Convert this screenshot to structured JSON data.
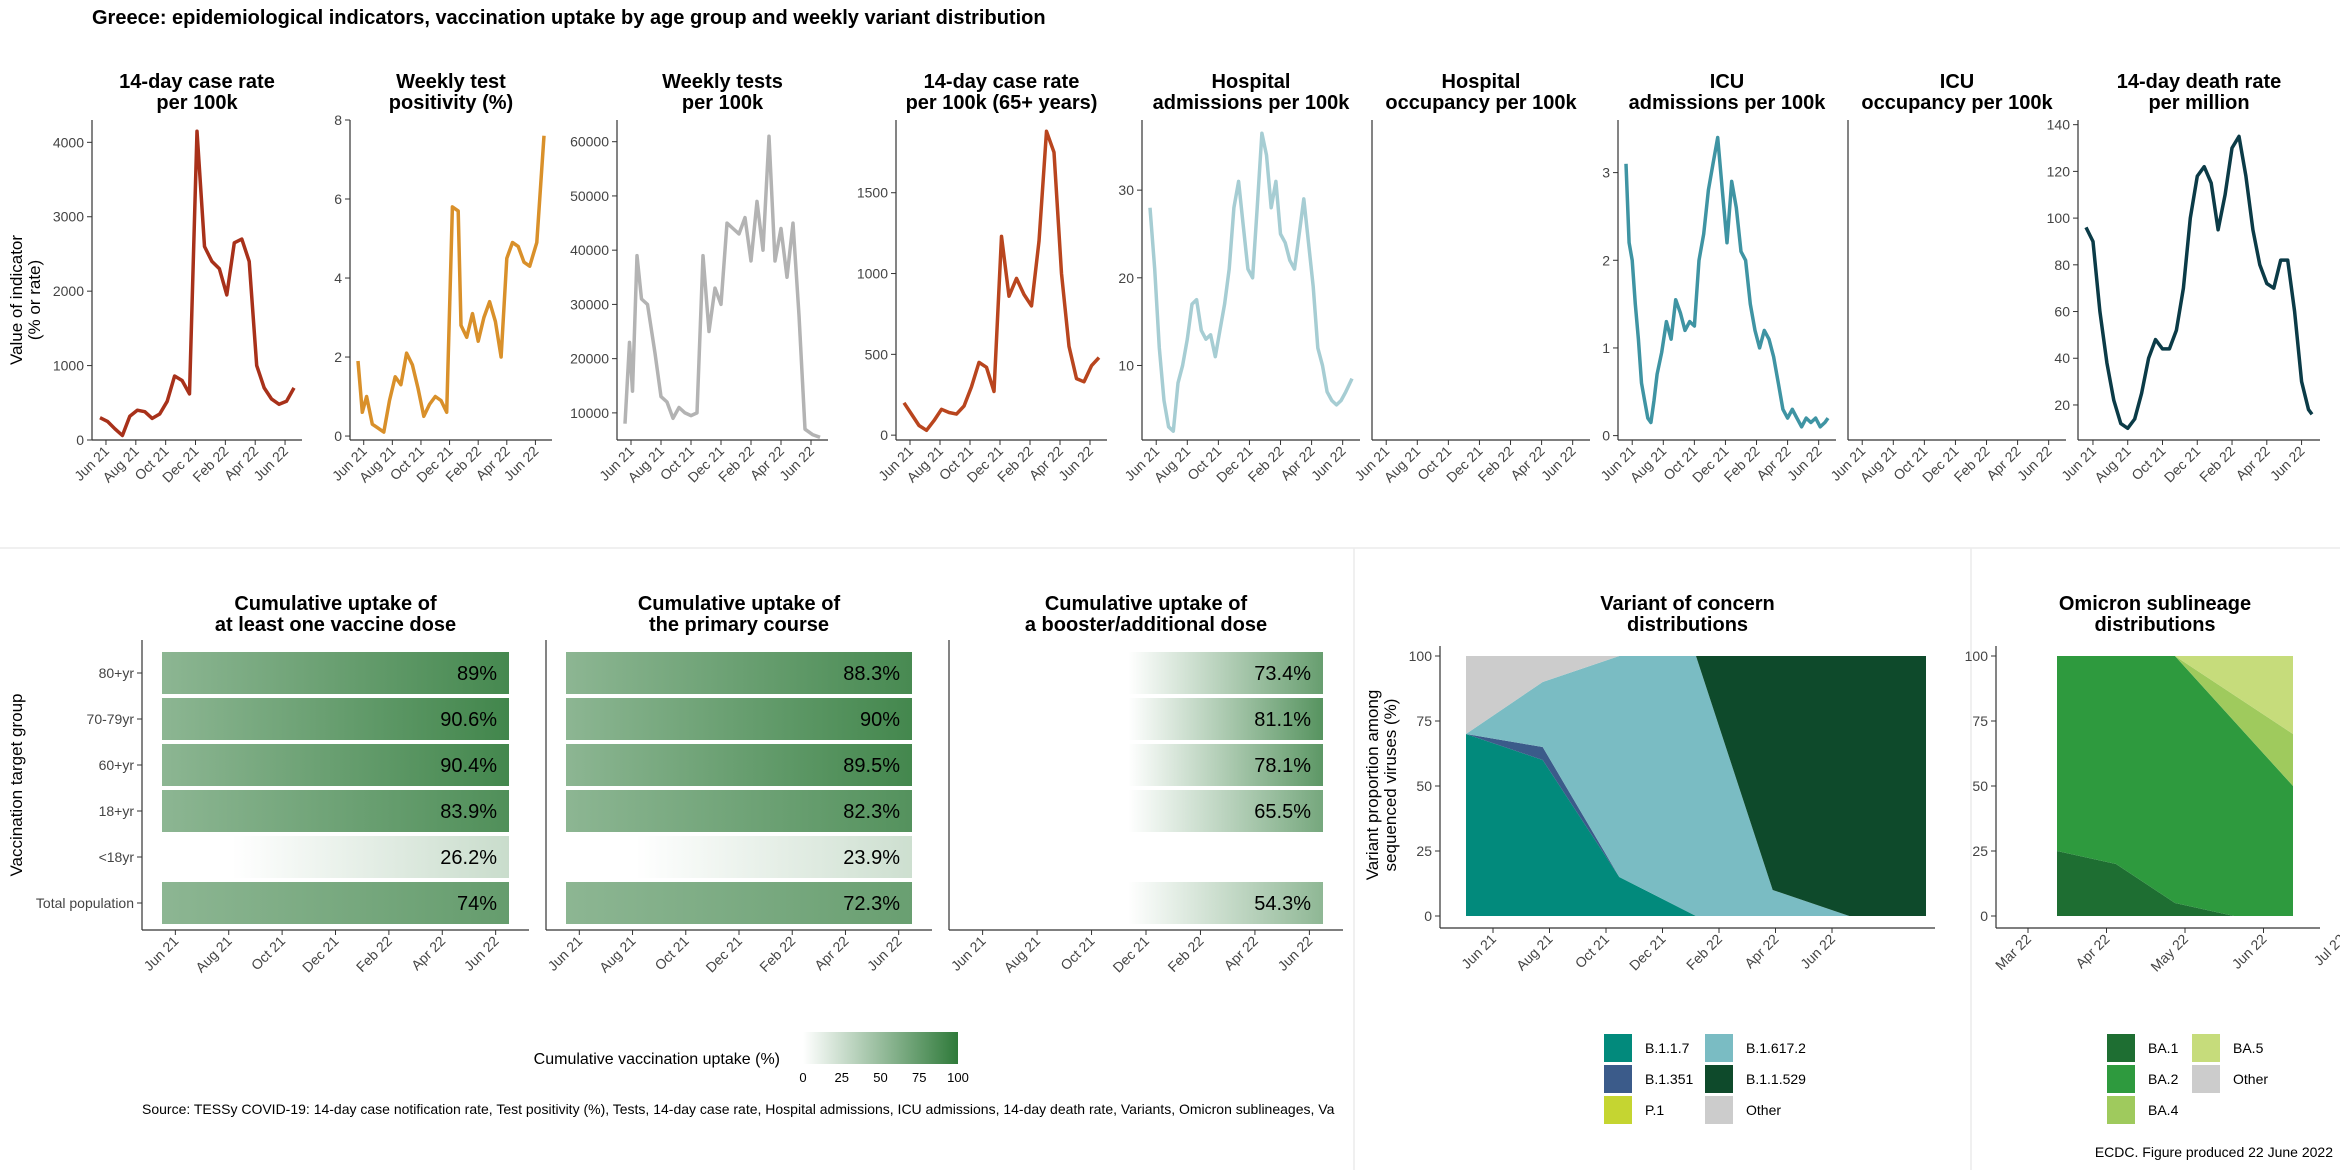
{
  "page_title": "Greece: epidemiological indicators, vaccination uptake by age group and weekly variant distribution",
  "y_axis_title_top": [
    "Value of indicator",
    "(% or rate)"
  ],
  "date_ticks": [
    "Jun 21",
    "Aug 21",
    "Oct 21",
    "Dec 21",
    "Feb 22",
    "Apr 22",
    "Jun 22"
  ],
  "colors": {
    "case_rate": "#a8311a",
    "positivity": "#d9902a",
    "tests": "#b3b3b3",
    "case_rate_65": "#b9451e",
    "hosp_adm": "#a6cdd3",
    "icu_adm": "#3f94a3",
    "death": "#0b3b47",
    "vacc_high": "#2f7a3a",
    "vacc_low": "#ffffff",
    "grid": "#ebebeb"
  },
  "chart_data": [
    {
      "type": "line",
      "key": "case_rate",
      "title": [
        "14-day case rate",
        "per 100k"
      ],
      "ylim": [
        0,
        4300
      ],
      "yticks": [
        0,
        1000,
        2000,
        3000,
        4000
      ],
      "x": [
        0,
        0.5,
        1,
        1.5,
        2,
        2.5,
        3,
        3.5,
        4,
        4.5,
        5,
        5.5,
        6,
        6.5,
        7,
        7.5,
        8,
        8.5,
        9,
        9.5,
        10,
        10.5,
        11,
        11.5,
        12,
        12.5,
        13
      ],
      "y": [
        300,
        250,
        150,
        60,
        320,
        400,
        380,
        290,
        350,
        520,
        860,
        800,
        620,
        4150,
        2600,
        2400,
        2300,
        1950,
        2650,
        2700,
        2400,
        1000,
        700,
        550,
        480,
        520,
        700
      ]
    },
    {
      "type": "line",
      "key": "positivity",
      "title": [
        "Weekly test",
        "positivity (%)"
      ],
      "ylim": [
        -0.1,
        8
      ],
      "yticks": [
        0,
        2,
        4,
        6,
        8
      ],
      "x": [
        0,
        0.3,
        0.6,
        1,
        1.4,
        1.8,
        2.2,
        2.6,
        3,
        3.4,
        3.8,
        4.2,
        4.6,
        5,
        5.4,
        5.8,
        6.2,
        6.6,
        7,
        7.2,
        7.6,
        8,
        8.4,
        8.8,
        9.2,
        9.6,
        10,
        10.4,
        10.8,
        11.2,
        11.6,
        12,
        12.5,
        13
      ],
      "y": [
        1.9,
        0.6,
        1.0,
        0.3,
        0.2,
        0.1,
        0.9,
        1.5,
        1.3,
        2.1,
        1.8,
        1.2,
        0.5,
        0.8,
        1.0,
        0.9,
        0.6,
        5.8,
        5.7,
        2.8,
        2.5,
        3.1,
        2.4,
        3.0,
        3.4,
        2.9,
        2.0,
        4.5,
        4.9,
        4.8,
        4.4,
        4.3,
        4.9,
        7.6
      ]
    },
    {
      "type": "line",
      "key": "tests",
      "title": [
        "Weekly tests",
        "per 100k"
      ],
      "ylim": [
        5000,
        64000
      ],
      "yticks": [
        10000,
        20000,
        30000,
        40000,
        50000,
        60000
      ],
      "x": [
        0,
        0.3,
        0.5,
        0.8,
        1.1,
        1.5,
        2,
        2.4,
        2.8,
        3.2,
        3.6,
        4,
        4.4,
        4.8,
        5.2,
        5.6,
        6,
        6.4,
        6.8,
        7.2,
        7.6,
        8,
        8.4,
        8.8,
        9.2,
        9.6,
        10,
        10.4,
        10.8,
        11.2,
        11.6,
        12,
        12.5,
        13
      ],
      "y": [
        8000,
        23000,
        14000,
        39000,
        31000,
        30000,
        21000,
        13000,
        12000,
        9000,
        11000,
        10000,
        9500,
        10000,
        39000,
        25000,
        33000,
        30000,
        45000,
        44000,
        43000,
        46000,
        38000,
        49000,
        40000,
        61000,
        38000,
        44000,
        35000,
        45000,
        28000,
        7000,
        6000,
        5500
      ]
    },
    {
      "type": "line",
      "key": "case_rate_65",
      "title": [
        "14-day case rate",
        "per 100k (65+ years)"
      ],
      "ylim": [
        -30,
        1950
      ],
      "yticks": [
        0,
        500,
        1000,
        1500
      ],
      "x": [
        0,
        0.5,
        1,
        1.5,
        2,
        2.5,
        3,
        3.5,
        4,
        4.5,
        5,
        5.5,
        6,
        6.5,
        7,
        7.5,
        8,
        8.5,
        9,
        9.5,
        10,
        10.5,
        11,
        11.5,
        12,
        12.5,
        13
      ],
      "y": [
        200,
        130,
        60,
        30,
        90,
        160,
        140,
        130,
        180,
        300,
        450,
        420,
        270,
        1230,
        860,
        970,
        870,
        800,
        1200,
        1880,
        1750,
        1000,
        550,
        350,
        330,
        430,
        480
      ]
    },
    {
      "type": "line",
      "key": "hosp_adm",
      "title": [
        "Hospital",
        "admissions per 100k"
      ],
      "ylim": [
        1.5,
        38
      ],
      "yticks": [
        10,
        20,
        30
      ],
      "x": [
        0,
        0.3,
        0.6,
        0.9,
        1.2,
        1.5,
        1.8,
        2.1,
        2.4,
        2.7,
        3,
        3.3,
        3.6,
        3.9,
        4.2,
        4.5,
        4.8,
        5.1,
        5.4,
        5.7,
        6,
        6.3,
        6.6,
        6.9,
        7.2,
        7.5,
        7.8,
        8.1,
        8.4,
        8.7,
        9,
        9.3,
        9.6,
        9.9,
        10.2,
        10.5,
        10.8,
        11.1,
        11.4,
        11.7,
        12,
        12.3,
        12.6,
        13
      ],
      "y": [
        28,
        21,
        12,
        6,
        3,
        2.5,
        8,
        10,
        13,
        17,
        17.5,
        14,
        13,
        13.5,
        11,
        14,
        17,
        21,
        28,
        31,
        26,
        21,
        20,
        28,
        36.5,
        34,
        28,
        31,
        25,
        24,
        22,
        21,
        25,
        29,
        24,
        19,
        12,
        10,
        7,
        6,
        5.5,
        6,
        7,
        8.5
      ]
    },
    {
      "type": "line",
      "key": "hosp_occ",
      "title": [
        "Hospital",
        "occupancy per 100k"
      ],
      "ylim": [
        0,
        1
      ],
      "yticks": [],
      "x": [],
      "y": []
    },
    {
      "type": "line",
      "key": "icu_adm",
      "title": [
        "ICU",
        "admissions per 100k"
      ],
      "ylim": [
        -0.05,
        3.6
      ],
      "yticks": [
        0,
        1,
        2,
        3
      ],
      "x": [
        0,
        0.2,
        0.4,
        0.6,
        0.8,
        1,
        1.2,
        1.4,
        1.6,
        1.8,
        2,
        2.3,
        2.6,
        2.9,
        3.2,
        3.5,
        3.8,
        4.1,
        4.4,
        4.7,
        5,
        5.3,
        5.6,
        5.9,
        6.2,
        6.5,
        6.8,
        7.1,
        7.4,
        7.7,
        8,
        8.3,
        8.6,
        8.9,
        9.2,
        9.5,
        9.8,
        10.1,
        10.4,
        10.7,
        11,
        11.3,
        11.6,
        11.9,
        12.2,
        12.5,
        12.8,
        13
      ],
      "y": [
        3.1,
        2.2,
        2.0,
        1.5,
        1.1,
        0.6,
        0.4,
        0.2,
        0.15,
        0.4,
        0.7,
        0.95,
        1.3,
        1.1,
        1.55,
        1.4,
        1.2,
        1.3,
        1.25,
        2.0,
        2.3,
        2.8,
        3.1,
        3.4,
        2.8,
        2.2,
        2.9,
        2.6,
        2.1,
        2.0,
        1.5,
        1.2,
        1.0,
        1.2,
        1.1,
        0.9,
        0.6,
        0.3,
        0.2,
        0.3,
        0.2,
        0.1,
        0.2,
        0.15,
        0.2,
        0.1,
        0.15,
        0.2
      ]
    },
    {
      "type": "line",
      "key": "icu_occ",
      "title": [
        "ICU",
        "occupancy per 100k"
      ],
      "ylim": [
        0,
        1
      ],
      "yticks": [],
      "x": [],
      "y": []
    },
    {
      "type": "line",
      "key": "death",
      "title": [
        "14-day death rate",
        "per million"
      ],
      "ylim": [
        5,
        142
      ],
      "yticks": [
        20,
        40,
        60,
        80,
        100,
        120,
        140
      ],
      "x": [
        0,
        0.4,
        0.8,
        1.2,
        1.6,
        2,
        2.4,
        2.8,
        3.2,
        3.6,
        4,
        4.4,
        4.8,
        5.2,
        5.6,
        6,
        6.4,
        6.8,
        7.2,
        7.6,
        8,
        8.4,
        8.8,
        9.2,
        9.6,
        10,
        10.4,
        10.8,
        11.2,
        11.6,
        12,
        12.4,
        12.8,
        13
      ],
      "y": [
        96,
        90,
        60,
        38,
        22,
        12,
        10,
        14,
        25,
        40,
        48,
        44,
        44,
        52,
        70,
        100,
        118,
        122,
        115,
        95,
        110,
        130,
        135,
        118,
        95,
        80,
        72,
        70,
        82,
        82,
        60,
        30,
        18,
        16
      ]
    },
    {
      "type": "bar",
      "key": "vacc_first",
      "title": [
        "Cumulative uptake of",
        "at least one vaccine dose"
      ],
      "categories": [
        "80+yr",
        "70-79yr",
        "60+yr",
        "18+yr",
        "<18yr",
        "Total population"
      ],
      "values": [
        89,
        90.6,
        90.4,
        83.9,
        26.2,
        74
      ],
      "labels": [
        "89%",
        "90.6%",
        "90.4%",
        "83.9%",
        "26.2%",
        "74%"
      ]
    },
    {
      "type": "bar",
      "key": "vacc_primary",
      "title": [
        "Cumulative uptake of",
        "the primary course"
      ],
      "categories": [
        "80+yr",
        "70-79yr",
        "60+yr",
        "18+yr",
        "<18yr",
        "Total population"
      ],
      "values": [
        88.3,
        90,
        89.5,
        82.3,
        23.9,
        72.3
      ],
      "labels": [
        "88.3%",
        "90%",
        "89.5%",
        "82.3%",
        "23.9%",
        "72.3%"
      ]
    },
    {
      "type": "bar",
      "key": "vacc_booster",
      "title": [
        "Cumulative uptake of",
        "a booster/additional dose"
      ],
      "categories": [
        "80+yr",
        "70-79yr",
        "60+yr",
        "18+yr",
        "<18yr",
        "Total population"
      ],
      "values": [
        73.4,
        81.1,
        78.1,
        65.5,
        null,
        54.3
      ],
      "labels": [
        "73.4%",
        "81.1%",
        "78.1%",
        "65.5%",
        "",
        "54.3%"
      ]
    },
    {
      "type": "area",
      "key": "variants",
      "title": [
        "Variant of concern",
        "distributions"
      ],
      "ylabel": [
        "Variant proportion among",
        "sequenced viruses (%)"
      ],
      "yticks": [
        0,
        25,
        50,
        75,
        100
      ],
      "x": [
        "Jun 21",
        "Aug 21",
        "Oct 21",
        "Dec 21",
        "Feb 22",
        "Apr 22",
        "Jun 22"
      ],
      "series": [
        {
          "name": "B.1.1.7",
          "color": "#028a7c",
          "values": [
            70,
            60,
            15,
            0,
            0,
            0,
            0
          ]
        },
        {
          "name": "B.1.351",
          "color": "#3b5b8a",
          "values": [
            0,
            5,
            0,
            0,
            0,
            0,
            0
          ]
        },
        {
          "name": "P.1",
          "color": "#c5d531",
          "values": [
            0,
            0,
            0,
            0,
            0,
            0,
            0
          ]
        },
        {
          "name": "B.1.617.2",
          "color": "#7abcc3",
          "values": [
            0,
            25,
            85,
            100,
            10,
            0,
            0
          ]
        },
        {
          "name": "B.1.1.529",
          "color": "#0e4a2b",
          "values": [
            0,
            0,
            0,
            0,
            90,
            100,
            100
          ]
        },
        {
          "name": "Other",
          "color": "#cccccc",
          "values": [
            30,
            10,
            0,
            0,
            0,
            0,
            0
          ]
        }
      ]
    },
    {
      "type": "area",
      "key": "omicron",
      "title": [
        "Omicron sublineage",
        "distributions"
      ],
      "yticks": [
        0,
        25,
        50,
        75,
        100
      ],
      "x": [
        "Mar 22",
        "Apr 22",
        "May 22",
        "Jun 22",
        "Jul 22"
      ],
      "series": [
        {
          "name": "BA.1",
          "color": "#1e6e32",
          "values": [
            25,
            20,
            5,
            0,
            0
          ]
        },
        {
          "name": "BA.2",
          "color": "#2e9a3e",
          "values": [
            75,
            80,
            95,
            75,
            50
          ]
        },
        {
          "name": "BA.4",
          "color": "#9fca5d",
          "values": [
            0,
            0,
            0,
            10,
            20
          ]
        },
        {
          "name": "BA.5",
          "color": "#c6dc7b",
          "values": [
            0,
            0,
            0,
            15,
            30
          ]
        },
        {
          "name": "Other",
          "color": "#cccccc",
          "values": [
            0,
            0,
            0,
            0,
            0
          ]
        }
      ]
    }
  ],
  "vacc_axis_title": "Vaccination target group",
  "vacc_legend": {
    "title": "Cumulative vaccination uptake (%)",
    "ticks": [
      "0",
      "25",
      "50",
      "75",
      "100"
    ]
  },
  "variant_legend": {
    "items": [
      {
        "name": "B.1.1.7",
        "color": "#028a7c"
      },
      {
        "name": "B.1.617.2",
        "color": "#7abcc3"
      },
      {
        "name": "B.1.351",
        "color": "#3b5b8a"
      },
      {
        "name": "B.1.1.529",
        "color": "#0e4a2b"
      },
      {
        "name": "P.1",
        "color": "#c5d531"
      },
      {
        "name": "Other",
        "color": "#cccccc"
      }
    ]
  },
  "omicron_legend": {
    "items": [
      {
        "name": "BA.1",
        "color": "#1e6e32"
      },
      {
        "name": "BA.5",
        "color": "#c6dc7b"
      },
      {
        "name": "BA.2",
        "color": "#2e9a3e"
      },
      {
        "name": "Other",
        "color": "#cccccc"
      },
      {
        "name": "BA.4",
        "color": "#9fca5d"
      }
    ]
  },
  "source_note": "Source: TESSy COVID-19: 14-day case notification rate, Test positivity (%), Tests, 14-day case rate, Hospital admissions, ICU admissions, 14-day death rate, Variants, Omicron sublineages, Va",
  "produced_note": "ECDC. Figure produced 22 June 2022"
}
